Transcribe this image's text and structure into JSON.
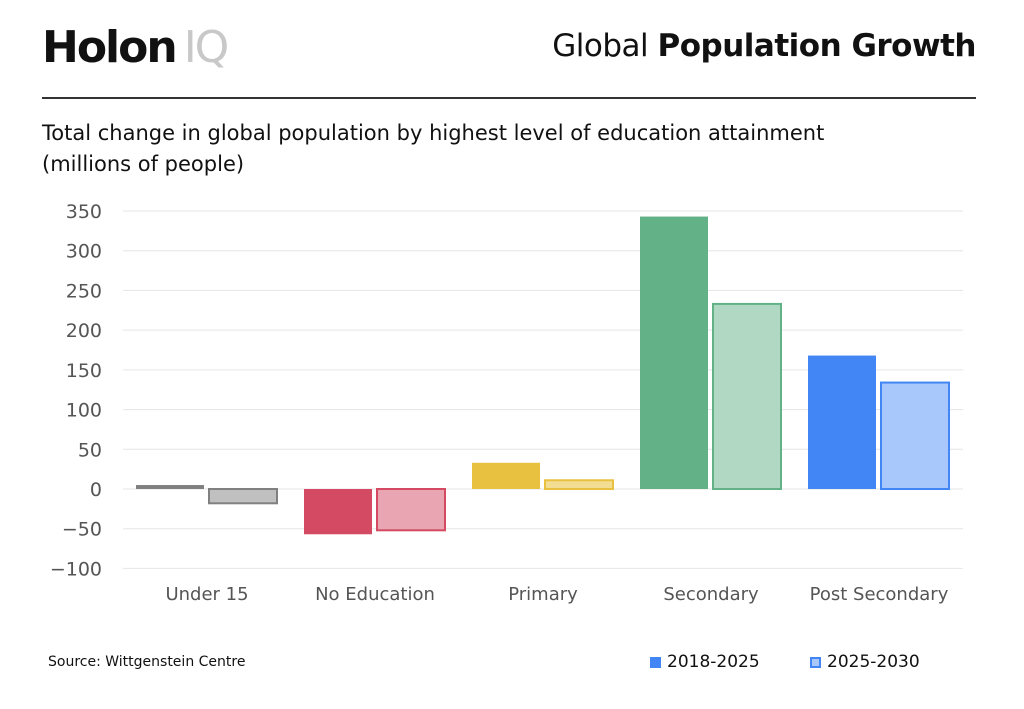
{
  "header": {
    "logo_main": "Holon",
    "logo_accent": "IQ",
    "title_light": "Global",
    "title_bold": "Population Growth"
  },
  "source": "Source: Wittgenstein Centre",
  "chart_data": {
    "type": "bar",
    "title": "Total change in global population by highest level of education attainment",
    "subtitle": "(millions of people)",
    "categories": [
      "Under 15",
      "No Education",
      "Primary",
      "Secondary",
      "Post Secondary"
    ],
    "series": [
      {
        "name": "2018-2025",
        "values": [
          5,
          -57,
          33,
          343,
          168
        ]
      },
      {
        "name": "2025-2030",
        "values": [
          -18,
          -52,
          11,
          233,
          134
        ]
      }
    ],
    "ylim": [
      -100,
      350
    ],
    "yticks": [
      350,
      300,
      250,
      200,
      150,
      100,
      50,
      0,
      -50,
      -100
    ],
    "grid": true,
    "legend_position": "bottom-right",
    "colors": {
      "dark": [
        "#808080",
        "#d44a63",
        "#e8c140",
        "#63b187",
        "#4285f4"
      ],
      "light": [
        "#c0c0c0",
        "#eaa5b2",
        "#f3dd93",
        "#b1d8c2",
        "#a8c7fa"
      ]
    }
  }
}
